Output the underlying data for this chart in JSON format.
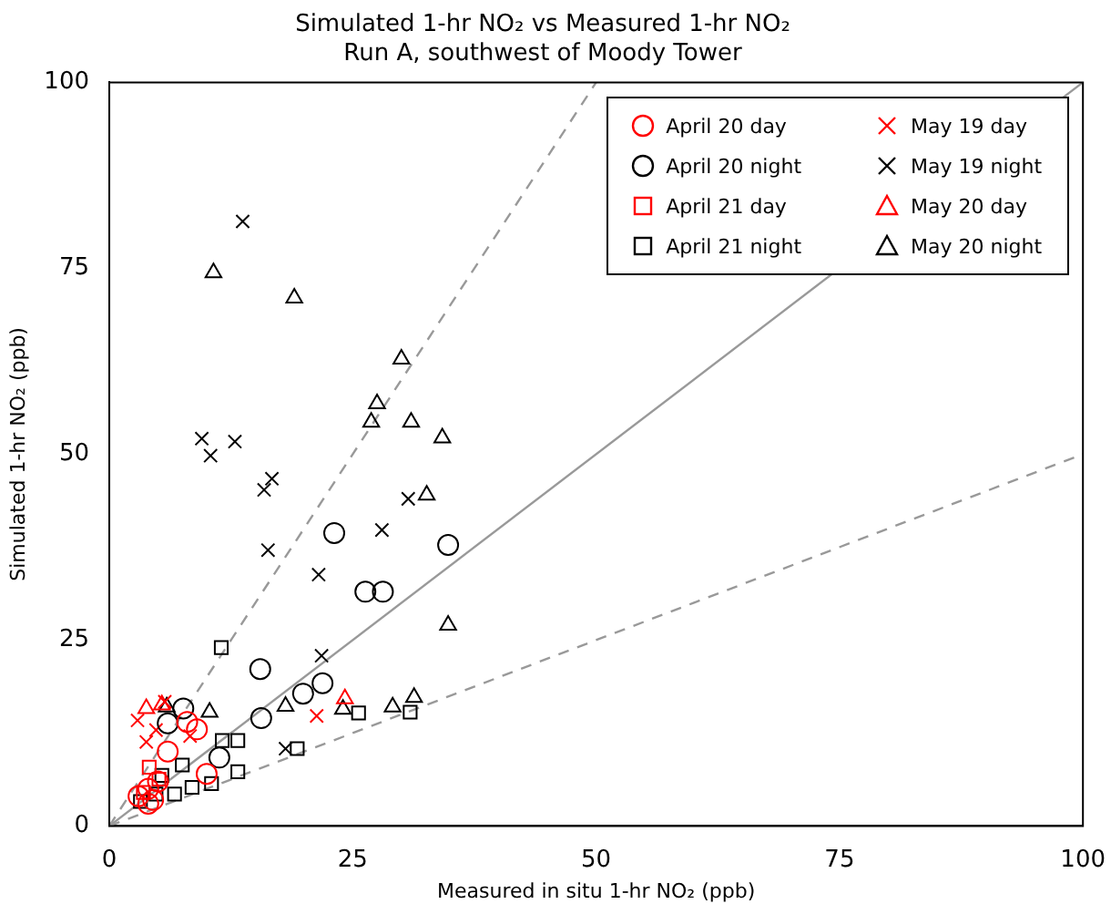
{
  "chart_data": {
    "type": "scatter",
    "title": "Simulated 1-hr NO₂ vs Measured 1-hr NO₂",
    "subtitle": "Run A, southwest of Moody Tower",
    "xlabel": "Measured in situ 1-hr NO₂ (ppb)",
    "ylabel": "Simulated 1-hr NO₂ (ppb)",
    "xlim": [
      0,
      100
    ],
    "ylim": [
      0,
      100
    ],
    "xticks": [
      0,
      25,
      50,
      75,
      100
    ],
    "yticks": [
      0,
      25,
      50,
      75,
      100
    ],
    "grid": false,
    "legend": "top right",
    "series": [
      {
        "name": "April 20 day",
        "color": "#ff0000",
        "marker": "circle",
        "x": [
          3,
          4,
          4.5,
          5,
          6,
          8,
          9,
          10,
          4
        ],
        "values": [
          4,
          5,
          3.5,
          6,
          10,
          14,
          13,
          7,
          3
        ]
      },
      {
        "name": "April 20 night",
        "color": "#000000",
        "marker": "circle",
        "x": [
          23.1,
          34.8,
          26.3,
          28.1,
          15.5,
          21.9,
          19.9,
          15.6,
          11.3,
          7.6,
          6
        ],
        "values": [
          39.4,
          37.8,
          31.5,
          31.5,
          21.1,
          19.2,
          17.8,
          14.5,
          9.2,
          15.8,
          13.8
        ]
      },
      {
        "name": "April 21 day",
        "color": "#ff0000",
        "marker": "square",
        "x": [
          4.1,
          5.1,
          3.5
        ],
        "values": [
          7.9,
          6.3,
          4.5
        ]
      },
      {
        "name": "April 21 night",
        "color": "#000000",
        "marker": "square",
        "x": [
          11.5,
          25.6,
          30.9,
          19.3,
          11.6,
          13.2,
          13.2,
          10.5,
          8.5,
          7.5,
          6.7,
          5.4,
          4.8,
          3.2
        ],
        "values": [
          24,
          15.2,
          15.3,
          10.4,
          11.5,
          11.5,
          7.3,
          5.7,
          5.2,
          8.2,
          4.3,
          6.8,
          4.3,
          3.3
        ]
      },
      {
        "name": "May 19 day",
        "color": "#ff0000",
        "marker": "cross",
        "x": [
          21.3,
          5.7,
          8.3,
          2.9,
          3.8,
          4.8
        ],
        "values": [
          14.8,
          16.7,
          12.1,
          14.2,
          11.3,
          12.9
        ]
      },
      {
        "name": "May 19 night",
        "color": "#000000",
        "marker": "cross",
        "x": [
          13.7,
          9.5,
          10.4,
          12.9,
          15.9,
          16.7,
          16.3,
          28,
          30.7,
          21.5,
          21.8,
          18.1
        ],
        "values": [
          81.3,
          52.1,
          49.8,
          51.7,
          45.2,
          46.7,
          37.1,
          39.8,
          44,
          33.8,
          22.9,
          10.4
        ]
      },
      {
        "name": "May 20 day",
        "color": "#ff0000",
        "marker": "triangle",
        "x": [
          24.2,
          3.8,
          5.4
        ],
        "values": [
          17.1,
          15.8,
          16.3
        ]
      },
      {
        "name": "May 20 night",
        "color": "#000000",
        "marker": "triangle",
        "x": [
          10.7,
          19,
          30,
          27.5,
          26.9,
          31,
          34.2,
          32.6,
          34.8,
          31.3,
          29.1,
          24,
          18.1,
          10.3,
          5.9
        ],
        "values": [
          74.4,
          71,
          62.8,
          56.8,
          54.3,
          54.3,
          52.2,
          44.5,
          27,
          17.3,
          16,
          15.7,
          16.1,
          15.3,
          16
        ]
      },
      {
        "type": "line",
        "color": "#999999",
        "line_style": "solid",
        "marker": "none",
        "x": [
          0,
          100
        ],
        "values": [
          0,
          100
        ]
      },
      {
        "type": "line",
        "color": "#999999",
        "line_style": "dashed",
        "marker": "none",
        "x": [
          0,
          50
        ],
        "values": [
          0,
          100
        ]
      },
      {
        "type": "line",
        "color": "#999999",
        "line_style": "dashed",
        "marker": "none",
        "x": [
          0,
          100
        ],
        "values": [
          0,
          50
        ]
      }
    ]
  }
}
